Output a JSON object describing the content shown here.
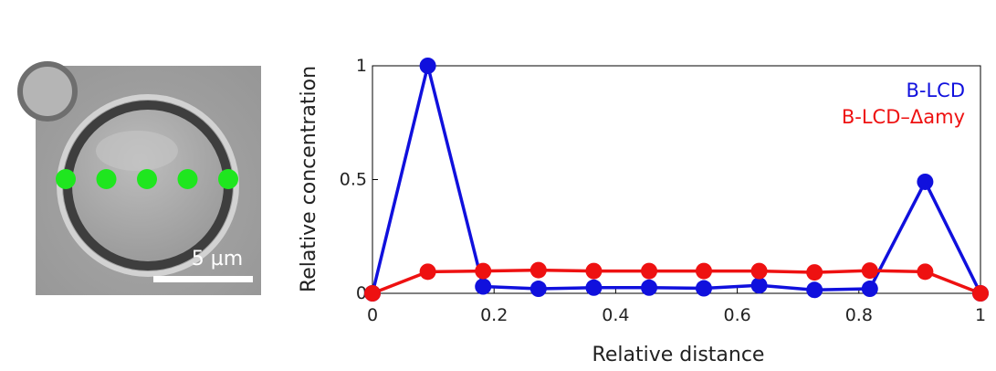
{
  "microscopy": {
    "scale_bar_label": "5 µm",
    "marker_color": "#1fe61f",
    "marker_count": 5
  },
  "chart_data": {
    "type": "line",
    "xlabel": "Relative distance",
    "ylabel": "Relative concentration",
    "xlim": [
      0,
      1
    ],
    "ylim": [
      0,
      1
    ],
    "x_ticks": [
      {
        "value": 0,
        "label": "0"
      },
      {
        "value": 0.2,
        "label": "0.2"
      },
      {
        "value": 0.4,
        "label": "0.4"
      },
      {
        "value": 0.6,
        "label": "0.6"
      },
      {
        "value": 0.8,
        "label": "0.8"
      },
      {
        "value": 1,
        "label": "1"
      }
    ],
    "y_ticks": [
      {
        "value": 0,
        "label": "0"
      },
      {
        "value": 0.5,
        "label": "0.5"
      },
      {
        "value": 1,
        "label": "1"
      }
    ],
    "grid": false,
    "legend_position": "top-right",
    "series": [
      {
        "name": "B-LCD",
        "color": "#1010dd",
        "points": [
          [
            0,
            0
          ],
          [
            0.091,
            1.0
          ],
          [
            0.182,
            0.03
          ],
          [
            0.273,
            0.02
          ],
          [
            0.364,
            0.025
          ],
          [
            0.455,
            0.025
          ],
          [
            0.545,
            0.022
          ],
          [
            0.636,
            0.035
          ],
          [
            0.727,
            0.015
          ],
          [
            0.818,
            0.02
          ],
          [
            0.909,
            0.49
          ],
          [
            1.0,
            0
          ]
        ]
      },
      {
        "name": "B-LCD–Δamy",
        "color": "#ee1111",
        "points": [
          [
            0,
            0
          ],
          [
            0.091,
            0.095
          ],
          [
            0.182,
            0.098
          ],
          [
            0.273,
            0.102
          ],
          [
            0.364,
            0.098
          ],
          [
            0.455,
            0.098
          ],
          [
            0.545,
            0.098
          ],
          [
            0.636,
            0.098
          ],
          [
            0.727,
            0.092
          ],
          [
            0.818,
            0.1
          ],
          [
            0.909,
            0.095
          ],
          [
            1.0,
            0
          ]
        ]
      }
    ]
  }
}
